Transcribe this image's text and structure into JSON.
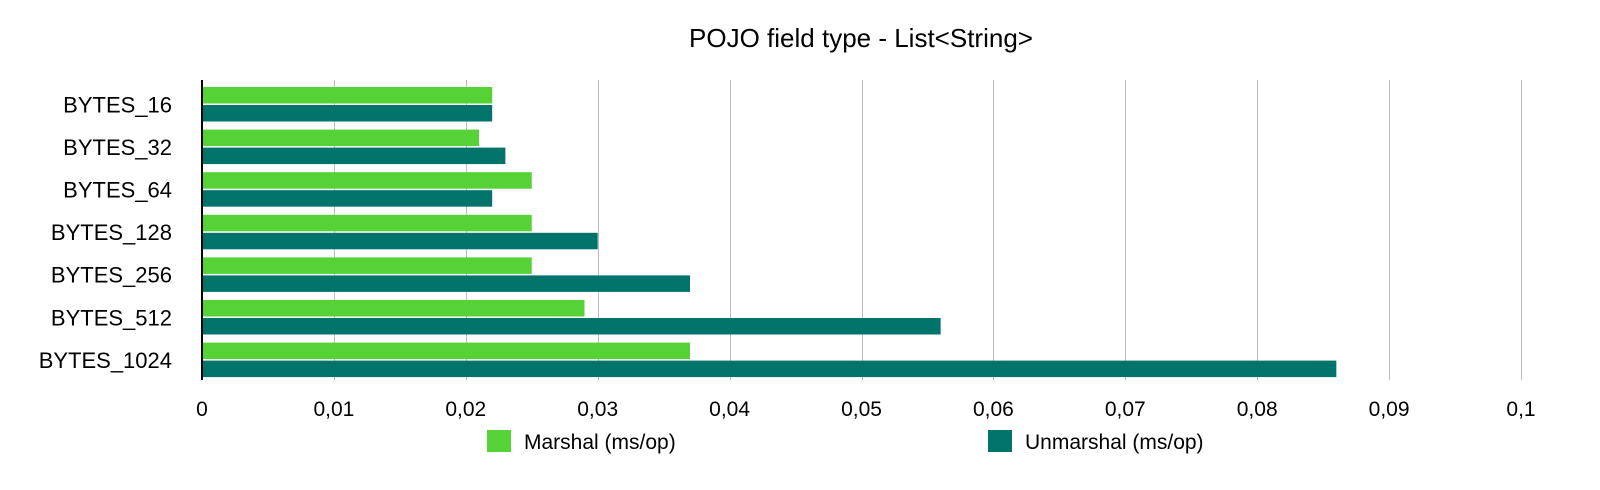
{
  "chart_data": {
    "type": "bar",
    "orientation": "horizontal",
    "title": "POJO field type - List<String>",
    "xlabel": "",
    "ylabel": "",
    "categories": [
      "BYTES_16",
      "BYTES_32",
      "BYTES_64",
      "BYTES_128",
      "BYTES_256",
      "BYTES_512",
      "BYTES_1024"
    ],
    "series": [
      {
        "name": "Marshal (ms/op)",
        "color": "#55d235",
        "values": [
          0.022,
          0.021,
          0.025,
          0.025,
          0.025,
          0.029,
          0.037
        ]
      },
      {
        "name": "Unmarshal (ms/op)",
        "color": "#00736b",
        "values": [
          0.022,
          0.023,
          0.022,
          0.03,
          0.037,
          0.056,
          0.086
        ]
      }
    ],
    "xlim": [
      0,
      0.1
    ],
    "x_ticks": [
      0,
      0.01,
      0.02,
      0.03,
      0.04,
      0.05,
      0.06,
      0.07,
      0.08,
      0.09,
      0.1
    ],
    "x_tick_labels": [
      "0",
      "0,01",
      "0,02",
      "0,03",
      "0,04",
      "0,05",
      "0,06",
      "0,07",
      "0,08",
      "0,09",
      "0,1"
    ],
    "grid": "vertical",
    "legend_position": "bottom"
  }
}
